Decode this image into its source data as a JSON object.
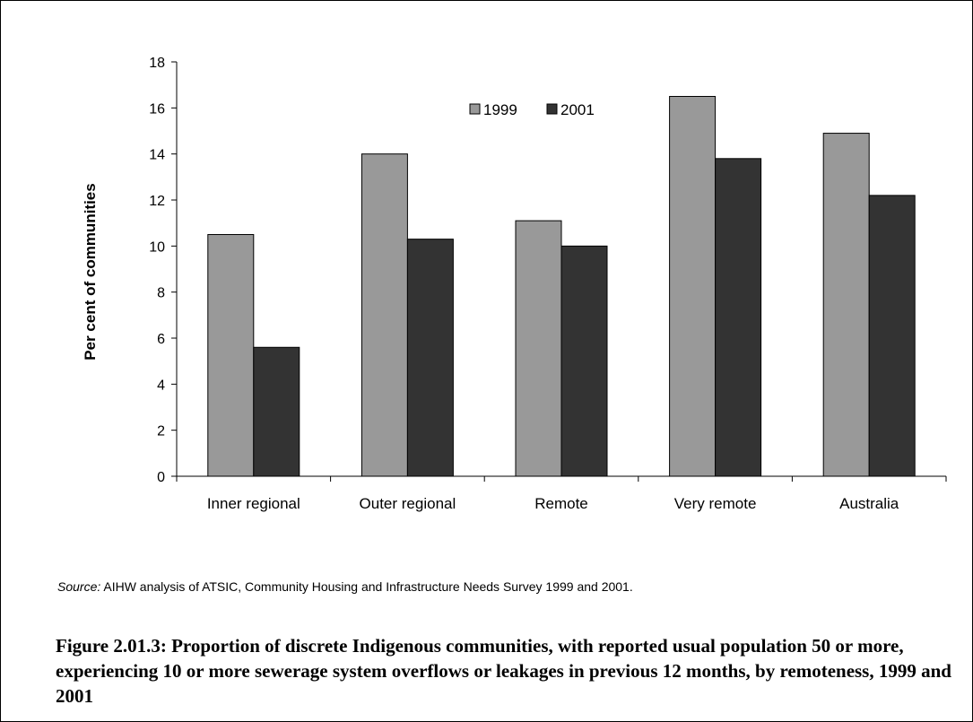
{
  "chart_data": {
    "type": "bar",
    "categories": [
      "Inner regional",
      "Outer regional",
      "Remote",
      "Very remote",
      "Australia"
    ],
    "series": [
      {
        "name": "1999",
        "values": [
          10.5,
          14.0,
          11.1,
          16.5,
          14.9
        ],
        "color": "#999999"
      },
      {
        "name": "2001",
        "values": [
          5.6,
          10.3,
          10.0,
          13.8,
          12.2
        ],
        "color": "#333333"
      }
    ],
    "title": "",
    "xlabel": "",
    "ylabel": "Per cent of communities",
    "ylim": [
      0,
      18
    ],
    "yticks": [
      0,
      2,
      4,
      6,
      8,
      10,
      12,
      14,
      16,
      18
    ],
    "grid": false,
    "legend_position": "top-center"
  },
  "source_label": "Source:",
  "source_text": " AIHW analysis of ATSIC, Community Housing and Infrastructure Needs Survey 1999 and 2001.",
  "caption": "Figure 2.01.3: Proportion of discrete Indigenous communities, with reported usual population 50 or more, experiencing 10 or more sewerage system overflows or leakages in previous 12 months, by remoteness, 1999 and 2001"
}
